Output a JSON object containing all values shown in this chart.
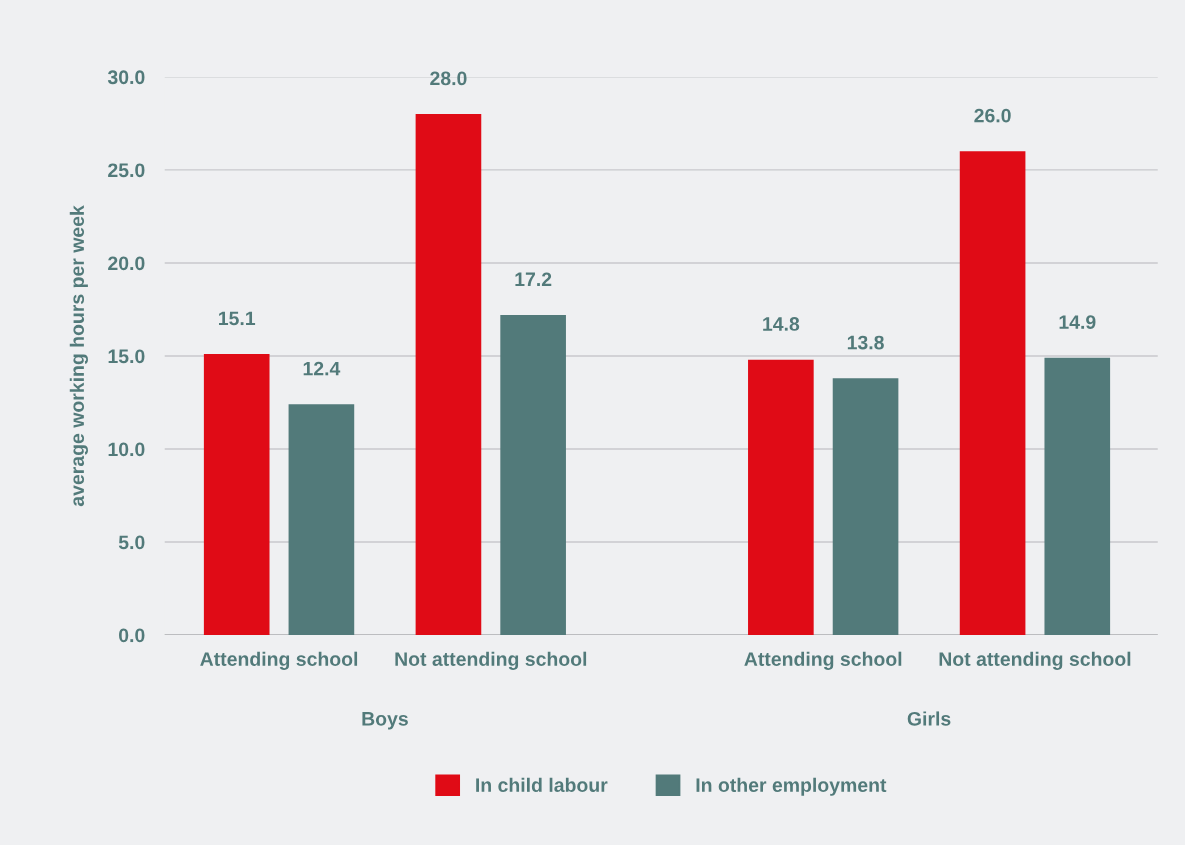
{
  "chart_data": {
    "type": "bar",
    "ylabel": "average working hours per week",
    "categories": [
      "Attending school",
      "Not attending school",
      "Attending school",
      "Not attending school"
    ],
    "series": [
      {
        "name": "In child labour",
        "color": "#e00b16",
        "values": [
          15.1,
          28.0,
          14.8,
          26.0
        ],
        "value_labels": [
          "15.1",
          "28.0",
          "14.8",
          "26.0"
        ]
      },
      {
        "name": "In other employment",
        "color": "#527a7a",
        "values": [
          12.4,
          17.2,
          13.8,
          14.9
        ],
        "value_labels": [
          "12.4",
          "17.2",
          "13.8",
          "14.9"
        ]
      }
    ],
    "ylim": [
      0,
      30
    ],
    "yticks": [
      {
        "value": 0,
        "label": "0.0"
      },
      {
        "value": 5,
        "label": "5.0"
      },
      {
        "value": 10,
        "label": "10.0"
      },
      {
        "value": 15,
        "label": "15.0"
      },
      {
        "value": 20,
        "label": "20.0"
      },
      {
        "value": 25,
        "label": "25.0"
      },
      {
        "value": 30,
        "label": "30.0"
      }
    ],
    "grid": "y",
    "legend": "bottom",
    "annotations": [
      "Boys",
      "Girls"
    ]
  }
}
